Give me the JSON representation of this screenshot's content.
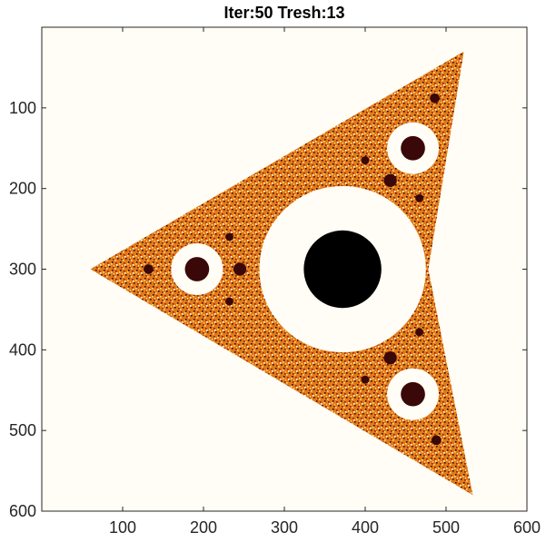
{
  "chart_data": {
    "type": "heatmap",
    "title": "Iter:50 Tresh:13",
    "xlabel": "",
    "ylabel": "",
    "xlim": [
      0,
      600
    ],
    "ylim": [
      0,
      600
    ],
    "y_direction": "reversed",
    "x_ticks": [
      100,
      200,
      300,
      400,
      500,
      600
    ],
    "y_ticks": [
      100,
      200,
      300,
      400,
      500,
      600
    ],
    "x_tick_labels": [
      "100",
      "200",
      "300",
      "400",
      "500",
      "600"
    ],
    "y_tick_labels": [
      "100",
      "200",
      "300",
      "400",
      "500",
      "600"
    ],
    "grid": false,
    "colormap": [
      "#fffdf5",
      "#f7e27a",
      "#e07b1a",
      "#a3150f",
      "#3a0808",
      "#000000"
    ],
    "background_color": "#fffdf5",
    "fractal": {
      "outline": [
        [
          522,
          30
        ],
        [
          478,
          300
        ],
        [
          533,
          580
        ],
        [
          60,
          300
        ]
      ],
      "main_disk": {
        "center": [
          372,
          300
        ],
        "radius": 48,
        "halo_radius": 103
      },
      "large_disks": [
        {
          "center": [
            459,
            150
          ],
          "radius": 15,
          "halo_radius": 32
        },
        {
          "center": [
            459,
            455
          ],
          "radius": 15,
          "halo_radius": 32
        },
        {
          "center": [
            192,
            300
          ],
          "radius": 15,
          "halo_radius": 32
        }
      ],
      "medium_disks": [
        {
          "center": [
            486,
            88
          ],
          "radius": 6
        },
        {
          "center": [
            488,
            512
          ],
          "radius": 6
        },
        {
          "center": [
            132,
            300
          ],
          "radius": 6
        },
        {
          "center": [
            431,
            190
          ],
          "radius": 8
        },
        {
          "center": [
            431,
            410
          ],
          "radius": 8
        },
        {
          "center": [
            245,
            300
          ],
          "radius": 8
        },
        {
          "center": [
            400,
            165
          ],
          "radius": 5
        },
        {
          "center": [
            400,
            437
          ],
          "radius": 5
        },
        {
          "center": [
            232,
            260
          ],
          "radius": 5
        },
        {
          "center": [
            232,
            340
          ],
          "radius": 5
        },
        {
          "center": [
            467,
            212
          ],
          "radius": 5
        },
        {
          "center": [
            467,
            378
          ],
          "radius": 5
        }
      ]
    }
  }
}
